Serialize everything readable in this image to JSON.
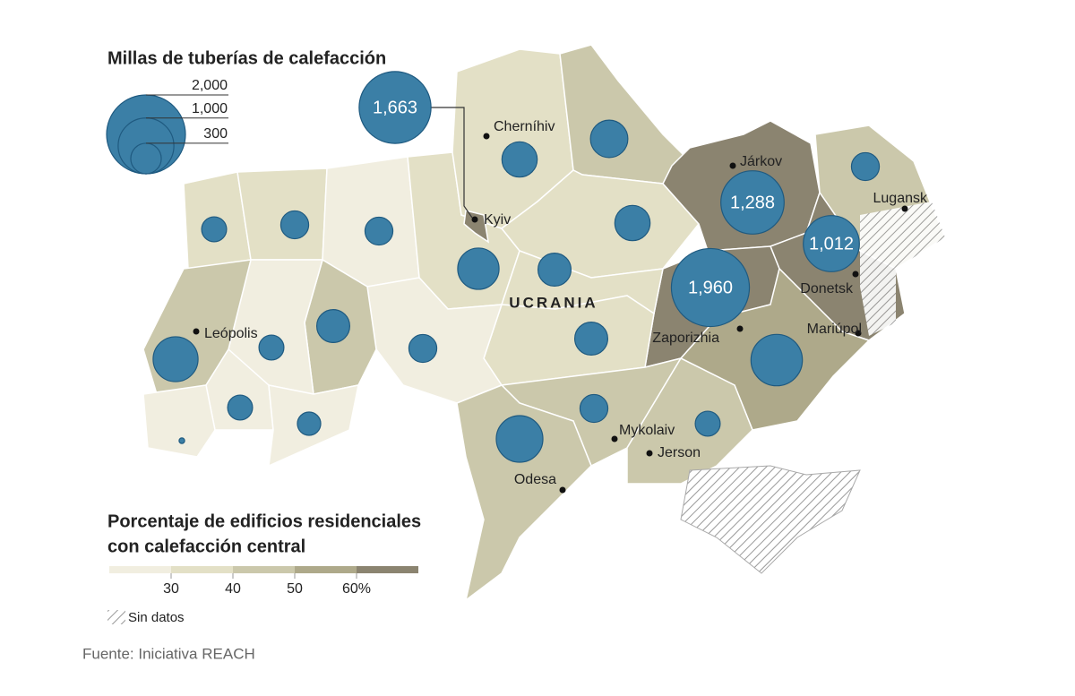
{
  "title_sizes": "Millas de tuberías de calefacción",
  "size_legend": {
    "values": [
      2000,
      1000,
      300
    ],
    "labels": [
      "2,000",
      "1,000",
      "300"
    ]
  },
  "bubble_color": "#3b7fa6",
  "bubbles": [
    {
      "value": 1663,
      "label": "1,663"
    },
    {
      "value": 1288,
      "label": "1,288"
    },
    {
      "value": 1012,
      "label": "1,012"
    },
    {
      "value": 1960,
      "label": "1,960"
    },
    {
      "value": 400
    },
    {
      "value": 450
    },
    {
      "value": 250
    },
    {
      "value": 400
    },
    {
      "value": 350
    },
    {
      "value": 550
    },
    {
      "value": 250
    },
    {
      "value": 250
    },
    {
      "value": 200
    },
    {
      "value": 350
    },
    {
      "value": 200
    },
    {
      "value": 250
    },
    {
      "value": 650
    },
    {
      "value": 200
    },
    {
      "value": 175
    },
    {
      "value": 10
    },
    {
      "value": 350
    },
    {
      "value": 250
    },
    {
      "value": 700
    },
    {
      "value": 200
    },
    {
      "value": 850
    }
  ],
  "country_label": "UCRANIA",
  "cities": [
    "Cherníhiv",
    "Kyiv",
    "Járkov",
    "Lugansk",
    "Donetsk",
    "Zaporizhia",
    "Mariúpol",
    "Leópolis",
    "Mykolaiv",
    "Jerson",
    "Odesa"
  ],
  "color_legend": {
    "title_lines": [
      "Porcentaje de edificios residenciales",
      "con calefacción central"
    ],
    "colors": [
      "#f1eee0",
      "#e3e0c6",
      "#cbc8ab",
      "#aea98a",
      "#8b8470"
    ],
    "range": [
      20,
      70
    ],
    "ticks": [
      30,
      40,
      50,
      {
        "value": 60,
        "label": "60%"
      }
    ]
  },
  "no_data_label": "Sin datos",
  "source": "Fuente: Iniciativa REACH"
}
